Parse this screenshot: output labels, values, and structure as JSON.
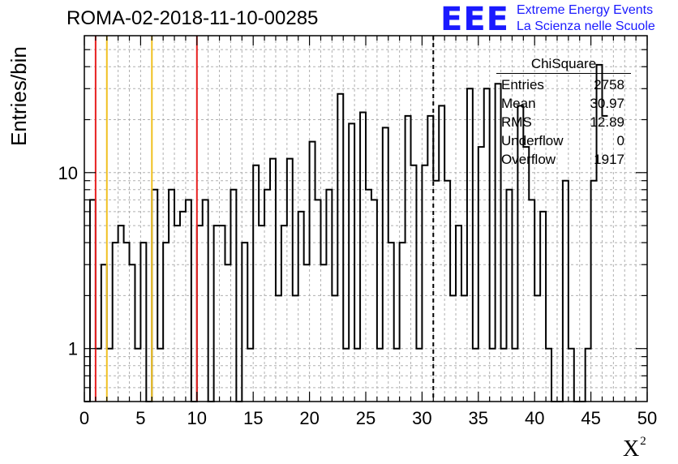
{
  "header": {
    "title": "ROMA-02-2018-11-10-00285",
    "logo_text": "EEE",
    "logo_line1": "Extreme Energy Events",
    "logo_line2": "La Scienza nelle Scuole"
  },
  "stats_box": {
    "title": "ChiSquare",
    "rows": [
      {
        "label": "Entries",
        "value": "2758"
      },
      {
        "label": "Mean",
        "value": "30.97"
      },
      {
        "label": "RMS",
        "value": "12.89"
      },
      {
        "label": "Underflow",
        "value": "0"
      },
      {
        "label": "Overflow",
        "value": "1917"
      }
    ]
  },
  "chart_data": {
    "type": "bar",
    "style": "step-histogram",
    "title": "ROMA-02-2018-11-10-00285",
    "xlabel": "X",
    "xlabel_superscript": "2",
    "ylabel": "Entries/bin",
    "xlim": [
      0,
      50
    ],
    "ylim": [
      0.5,
      60
    ],
    "yscale": "log",
    "grid": true,
    "bin_width": 0.5,
    "x_ticks": [
      "0",
      "5",
      "10",
      "15",
      "20",
      "25",
      "30",
      "35",
      "40",
      "45",
      "50"
    ],
    "y_ticks": [
      "1",
      "10"
    ],
    "values": [
      0,
      7,
      1,
      3,
      1,
      4,
      5,
      4,
      3,
      1,
      4,
      0,
      8,
      1,
      4,
      8,
      5,
      6,
      7,
      0,
      5,
      7,
      0,
      5,
      5,
      3,
      8,
      0,
      4,
      1,
      11,
      5,
      8,
      12,
      2,
      5,
      12,
      2,
      6,
      3,
      15,
      7,
      3,
      8,
      2,
      28,
      1,
      19,
      1,
      22,
      8,
      7,
      1,
      18,
      4,
      1,
      4,
      21,
      11,
      1,
      11,
      21,
      9,
      24,
      9,
      2,
      5,
      2,
      30,
      1,
      14,
      30,
      1,
      32,
      1,
      8,
      1,
      24,
      14,
      7,
      2,
      6,
      1,
      0,
      0,
      9,
      1,
      0,
      0,
      1,
      9,
      41,
      21
    ],
    "colors": {
      "histogram": "#000000",
      "grid": "#b0b0b0"
    },
    "reference_lines": [
      {
        "x": 1.0,
        "color": "#e82020",
        "style": "solid"
      },
      {
        "x": 2.0,
        "color": "#f0c020",
        "style": "solid"
      },
      {
        "x": 6.0,
        "color": "#f0c020",
        "style": "solid"
      },
      {
        "x": 10.0,
        "color": "#e82020",
        "style": "solid"
      },
      {
        "x": 31.0,
        "color": "#000000",
        "style": "dashed"
      }
    ]
  }
}
